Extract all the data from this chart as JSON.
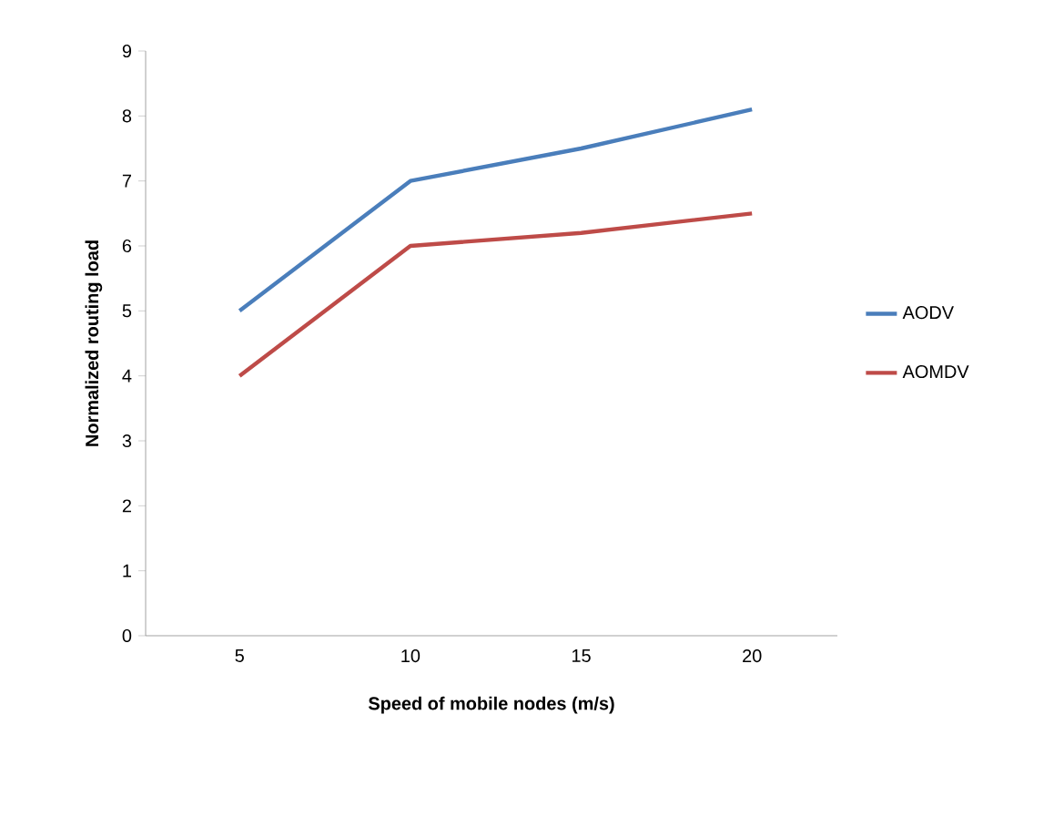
{
  "chart_data": {
    "type": "line",
    "xlabel": "Speed of mobile nodes (m/s)",
    "ylabel": "Normalized routing load",
    "categories": [
      "5",
      "10",
      "15",
      "20"
    ],
    "series": [
      {
        "name": "AODV",
        "color": "#4a7ebb",
        "values": [
          5,
          7,
          7.5,
          8.1
        ]
      },
      {
        "name": "AOMDV",
        "color": "#be4b48",
        "values": [
          4,
          6,
          6.2,
          6.5
        ]
      }
    ],
    "ylim": [
      0,
      9
    ],
    "yticks": [
      0,
      1,
      2,
      3,
      4,
      5,
      6,
      7,
      8,
      9
    ],
    "legend": "right",
    "marker": "none",
    "line_style": "solid"
  }
}
